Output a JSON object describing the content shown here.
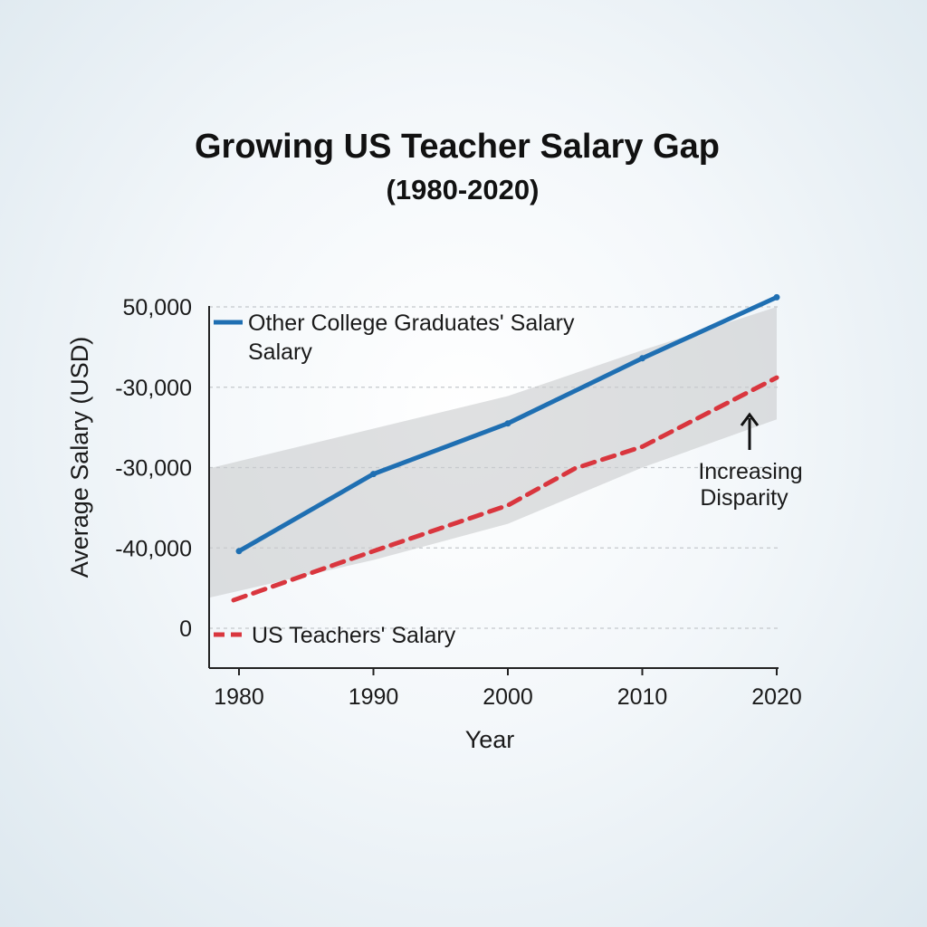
{
  "chart_data": {
    "type": "line",
    "title": "Growing US Teacher Salary Gap",
    "subtitle": "(1980-2020)",
    "xlabel": "Year",
    "ylabel": "Average Salary (USD)",
    "x": [
      1980,
      1990,
      2000,
      2010,
      2020
    ],
    "y_tick_labels": [
      "50,000",
      "-30,000",
      "-30,000",
      "-40,000",
      "0"
    ],
    "y_tick_values": [
      4,
      3,
      2,
      1,
      0
    ],
    "ylim": [
      -0.5,
      4.1
    ],
    "grid": true,
    "series": [
      {
        "name": "Other College Graduates' Salary",
        "name_line2": "Salary",
        "style": "solid",
        "color": "#1f6fb2",
        "x": [
          1980,
          1990,
          2000,
          2010,
          2020
        ],
        "values": [
          0.96,
          1.92,
          2.55,
          3.36,
          4.12
        ]
      },
      {
        "name": "US Teachers' Salary",
        "style": "dashed",
        "color": "#d9363e",
        "x": [
          1980,
          1990,
          2000,
          2005,
          2010,
          2020
        ],
        "values": [
          0.35,
          0.96,
          1.53,
          1.99,
          2.26,
          3.12
        ]
      }
    ],
    "gap_band": {
      "color": "#c9cbcd",
      "upper": [
        [
          1980,
          1.99
        ],
        [
          2000,
          2.89
        ],
        [
          2010,
          3.46
        ],
        [
          2020,
          4.0
        ]
      ],
      "lower": [
        [
          2020,
          2.6
        ],
        [
          2010,
          2.0
        ],
        [
          2000,
          1.3
        ],
        [
          1990,
          0.85
        ],
        [
          1980,
          0.38
        ]
      ]
    },
    "annotation": {
      "lines": [
        "Increasing",
        "Disparity"
      ],
      "x": 2018,
      "y": 2.7
    }
  }
}
